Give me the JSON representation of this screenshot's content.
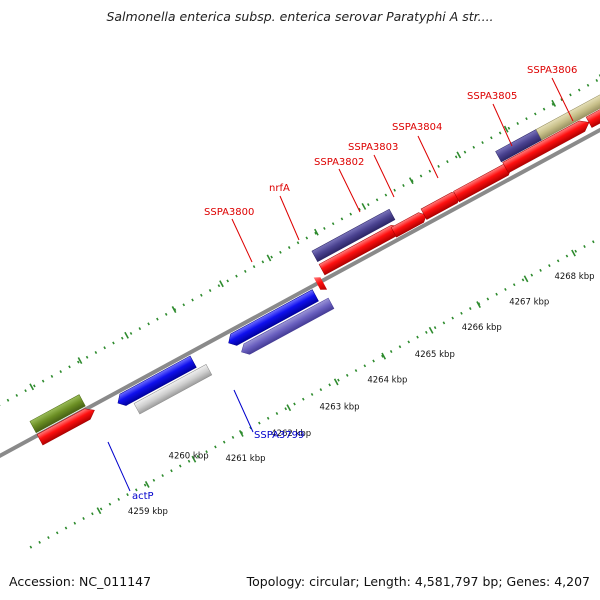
{
  "title": "Salmonella enterica subsp. enterica serovar Paratyphi A str....",
  "footer": {
    "accession": "Accession: NC_011147",
    "summary": "Topology: circular; Length: 4,581,797 bp; Genes: 4,207"
  },
  "scale": {
    "labels": [
      "4259 kbp",
      "4260 kbp",
      "4261 kbp",
      "4262 kbp",
      "4263 kbp",
      "4264 kbp",
      "4265 kbp",
      "4266 kbp",
      "4267 kbp",
      "4268 kbp"
    ]
  },
  "genes": {
    "SSPA3800": "SSPA3800",
    "nrfA": "nrfA",
    "SSPA3802": "SSPA3802",
    "SSPA3803": "SSPA3803",
    "SSPA3804": "SSPA3804",
    "SSPA3805": "SSPA3805",
    "SSPA3806": "SSPA3806",
    "SSPA3799": "SSPA3799",
    "actP": "actP"
  },
  "colors": {
    "forward_red": "#ff0000",
    "reverse_blue": "#0000ee",
    "purple": "#5a4fa8",
    "dark_purple": "#3d3580",
    "olive": "#6b8e23",
    "khaki": "#c8c08a",
    "grey": "#bfbfbf",
    "backbone": "#888888",
    "tick_green": "#2e8b2e",
    "label_red": "#dd0000",
    "label_blue": "#0000cc"
  }
}
